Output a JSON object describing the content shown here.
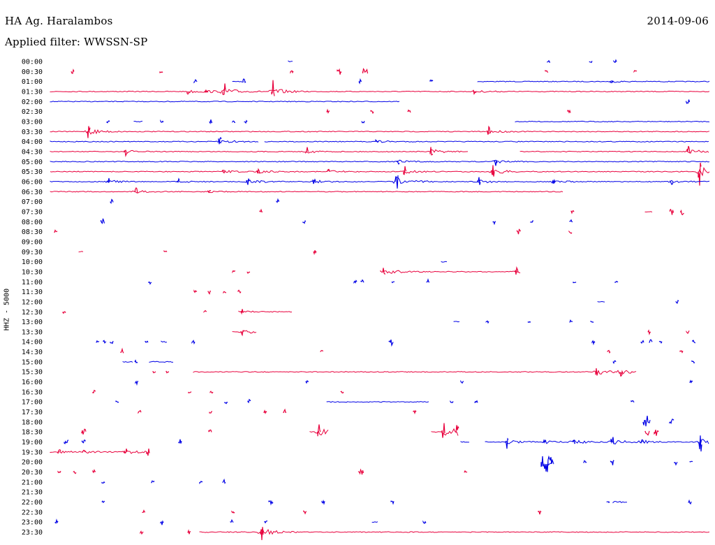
{
  "header": {
    "station": "HA Ag. Haralambos",
    "date": "2014-09-06",
    "filter": "Applied filter: WWSSN-SP"
  },
  "chart_data": {
    "type": "line",
    "title": "HA Ag. Haralambos",
    "ylabel": "HHZ - 5000",
    "colors": {
      "odd_rows": "#e8003c",
      "even_rows": "#0000e6"
    },
    "row_labels": [
      "00:00",
      "00:30",
      "01:00",
      "01:30",
      "02:00",
      "02:30",
      "03:00",
      "03:30",
      "04:00",
      "04:30",
      "05:00",
      "05:30",
      "06:00",
      "06:30",
      "07:00",
      "07:30",
      "08:00",
      "08:30",
      "09:00",
      "09:30",
      "10:00",
      "10:30",
      "11:00",
      "11:30",
      "12:00",
      "12:30",
      "13:00",
      "13:30",
      "14:00",
      "14:30",
      "15:00",
      "15:30",
      "16:00",
      "16:30",
      "17:00",
      "17:30",
      "18:00",
      "18:30",
      "19:00",
      "19:30",
      "20:00",
      "20:30",
      "21:00",
      "21:30",
      "22:00",
      "22:30",
      "23:00",
      "23:30"
    ],
    "series": [
      {
        "label": "00:00",
        "segments": [
          [
            413,
            420
          ]
        ],
        "bursts": [
          [
            786,
            0.3
          ],
          [
            846,
            0.3
          ],
          [
            881,
            0.3
          ]
        ]
      },
      {
        "label": "00:30",
        "segments": [],
        "bursts": [
          [
            104,
            0.4
          ],
          [
            231,
            0.4
          ],
          [
            418,
            0.3
          ],
          [
            486,
            0.6
          ],
          [
            523,
            0.7
          ],
          [
            783,
            0.3
          ],
          [
            910,
            0.3
          ]
        ]
      },
      {
        "label": "01:00",
        "segments": [
          [
            333,
            350
          ],
          [
            684,
            1016
          ]
        ],
        "bursts": [
          [
            280,
            0.3
          ],
          [
            350,
            0.6
          ],
          [
            516,
            0.3
          ],
          [
            618,
            0.3
          ],
          [
            876,
            0.3
          ]
        ]
      },
      {
        "label": "01:30",
        "segments": [
          [
            72,
            1016
          ]
        ],
        "bursts": [
          [
            270,
            0.6
          ],
          [
            296,
            0.4
          ],
          [
            321,
            1.6
          ],
          [
            391,
            1.6
          ],
          [
            680,
            0.5
          ]
        ]
      },
      {
        "label": "02:00",
        "segments": [
          [
            72,
            572
          ]
        ],
        "bursts": [
          [
            985,
            0.5
          ]
        ]
      },
      {
        "label": "02:30",
        "segments": [],
        "bursts": [
          [
            470,
            0.3
          ],
          [
            533,
            0.3
          ],
          [
            586,
            0.3
          ],
          [
            815,
            0.4
          ]
        ]
      },
      {
        "label": "03:00",
        "segments": [
          [
            192,
            205
          ],
          [
            738,
            1016
          ]
        ],
        "bursts": [
          [
            155,
            0.3
          ],
          [
            232,
            0.3
          ],
          [
            302,
            0.3
          ],
          [
            335,
            0.3
          ],
          [
            352,
            0.3
          ],
          [
            520,
            0.3
          ]
        ]
      },
      {
        "label": "03:30",
        "segments": [
          [
            72,
            1016
          ]
        ],
        "bursts": [
          [
            127,
            1.4
          ],
          [
            700,
            0.8
          ]
        ]
      },
      {
        "label": "04:00",
        "segments": [
          [
            72,
            370
          ],
          [
            379,
            1016
          ]
        ],
        "bursts": [
          [
            315,
            1.0
          ],
          [
            540,
            0.5
          ]
        ]
      },
      {
        "label": "04:30",
        "segments": [
          [
            72,
            670
          ],
          [
            745,
            1016
          ]
        ],
        "bursts": [
          [
            180,
            0.6
          ],
          [
            440,
            0.6
          ],
          [
            618,
            0.9
          ],
          [
            986,
            1.2
          ]
        ]
      },
      {
        "label": "05:00",
        "segments": [
          [
            72,
            1016
          ]
        ],
        "bursts": [
          [
            570,
            0.6
          ],
          [
            710,
            0.7
          ]
        ]
      },
      {
        "label": "05:30",
        "segments": [
          [
            72,
            1016
          ]
        ],
        "bursts": [
          [
            320,
            0.5
          ],
          [
            370,
            0.6
          ],
          [
            470,
            0.6
          ],
          [
            580,
            0.8
          ],
          [
            706,
            1.3
          ],
          [
            1002,
            2.4
          ]
        ]
      },
      {
        "label": "06:00",
        "segments": [
          [
            72,
            1016
          ]
        ],
        "bursts": [
          [
            155,
            0.7
          ],
          [
            255,
            0.6
          ],
          [
            355,
            0.9
          ],
          [
            450,
            0.6
          ],
          [
            568,
            2.5
          ],
          [
            686,
            0.7
          ],
          [
            793,
            0.6
          ],
          [
            962,
            0.5
          ]
        ]
      },
      {
        "label": "06:30",
        "segments": [
          [
            72,
            806
          ]
        ],
        "bursts": [
          [
            195,
            0.6
          ],
          [
            300,
            0.3
          ]
        ]
      },
      {
        "label": "07:00",
        "segments": [],
        "bursts": [
          [
            160,
            0.3
          ],
          [
            398,
            0.3
          ]
        ]
      },
      {
        "label": "07:30",
        "segments": [
          [
            924,
            934
          ]
        ],
        "bursts": [
          [
            374,
            0.3
          ],
          [
            820,
            0.3
          ],
          [
            962,
            0.5
          ],
          [
            977,
            0.5
          ]
        ]
      },
      {
        "label": "08:00",
        "segments": [],
        "bursts": [
          [
            147,
            0.5
          ],
          [
            436,
            0.3
          ],
          [
            708,
            0.3
          ],
          [
            762,
            0.3
          ],
          [
            818,
            0.3
          ]
        ]
      },
      {
        "label": "08:30",
        "segments": [],
        "bursts": [
          [
            80,
            0.3
          ],
          [
            743,
            0.5
          ],
          [
            817,
            0.4
          ]
        ]
      },
      {
        "label": "09:00",
        "segments": [],
        "bursts": []
      },
      {
        "label": "09:30",
        "segments": [
          [
            113,
            120
          ]
        ],
        "bursts": [
          [
            237,
            0.3
          ],
          [
            451,
            0.4
          ]
        ]
      },
      {
        "label": "10:00",
        "segments": [
          [
            632,
            640
          ]
        ],
        "bursts": []
      },
      {
        "label": "10:30",
        "segments": [
          [
            545,
            746
          ]
        ],
        "bursts": [
          [
            335,
            0.3
          ],
          [
            356,
            0.3
          ],
          [
            550,
            1.2
          ],
          [
            740,
            0.6
          ]
        ]
      },
      {
        "label": "11:00",
        "segments": [],
        "bursts": [
          [
            215,
            0.3
          ],
          [
            509,
            0.3
          ],
          [
            519,
            0.3
          ],
          [
            563,
            0.3
          ],
          [
            613,
            0.3
          ],
          [
            823,
            0.3
          ],
          [
            883,
            0.3
          ]
        ]
      },
      {
        "label": "11:30",
        "segments": [],
        "bursts": [
          [
            280,
            0.3
          ],
          [
            300,
            0.3
          ],
          [
            322,
            0.3
          ],
          [
            343,
            0.3
          ]
        ]
      },
      {
        "label": "12:00",
        "segments": [
          [
            856,
            866
          ]
        ],
        "bursts": [
          [
            970,
            0.3
          ]
        ]
      },
      {
        "label": "12:30",
        "segments": [
          [
            342,
            418
          ]
        ],
        "bursts": [
          [
            92,
            0.3
          ],
          [
            294,
            0.3
          ],
          [
            347,
            0.4
          ]
        ]
      },
      {
        "label": "13:00",
        "segments": [
          [
            650,
            658
          ]
        ],
        "bursts": [
          [
            698,
            0.3
          ],
          [
            758,
            0.3
          ],
          [
            818,
            0.3
          ],
          [
            848,
            0.3
          ]
        ]
      },
      {
        "label": "13:30",
        "segments": [
          [
            333,
            368
          ]
        ],
        "bursts": [
          [
            347,
            0.9
          ],
          [
            930,
            0.3
          ],
          [
            985,
            0.4
          ]
        ]
      },
      {
        "label": "14:00",
        "segments": [
          [
            231,
            240
          ]
        ],
        "bursts": [
          [
            140,
            0.3
          ],
          [
            150,
            0.3
          ],
          [
            160,
            0.3
          ],
          [
            210,
            0.3
          ],
          [
            277,
            0.3
          ],
          [
            560,
            0.6
          ],
          [
            850,
            0.3
          ],
          [
            920,
            0.3
          ],
          [
            932,
            0.3
          ],
          [
            946,
            0.3
          ],
          [
            994,
            0.4
          ]
        ]
      },
      {
        "label": "14:30",
        "segments": [],
        "bursts": [
          [
            175,
            0.4
          ],
          [
            461,
            0.3
          ],
          [
            872,
            0.4
          ],
          [
            976,
            0.3
          ]
        ]
      },
      {
        "label": "15:00",
        "segments": [
          [
            176,
            190
          ],
          [
            214,
            248
          ]
        ],
        "bursts": [
          [
            195,
            0.3
          ],
          [
            880,
            0.3
          ],
          [
            993,
            0.3
          ]
        ]
      },
      {
        "label": "15:30",
        "segments": [
          [
            277,
            912
          ]
        ],
        "bursts": [
          [
            221,
            0.3
          ],
          [
            240,
            0.3
          ],
          [
            855,
            1.3
          ],
          [
            890,
            0.9
          ]
        ]
      },
      {
        "label": "16:00",
        "segments": [],
        "bursts": [
          [
            196,
            0.3
          ],
          [
            440,
            0.3
          ],
          [
            662,
            0.3
          ],
          [
            990,
            0.3
          ]
        ]
      },
      {
        "label": "16:30",
        "segments": [],
        "bursts": [
          [
            135,
            0.3
          ],
          [
            272,
            0.3
          ],
          [
            303,
            0.3
          ],
          [
            490,
            0.3
          ]
        ]
      },
      {
        "label": "17:00",
        "segments": [
          [
            468,
            614
          ]
        ],
        "bursts": [
          [
            168,
            0.3
          ],
          [
            324,
            0.3
          ],
          [
            357,
            0.4
          ],
          [
            647,
            0.3
          ],
          [
            682,
            0.3
          ],
          [
            906,
            0.3
          ]
        ]
      },
      {
        "label": "17:30",
        "segments": [],
        "bursts": [
          [
            200,
            0.3
          ],
          [
            302,
            0.3
          ],
          [
            380,
            0.3
          ],
          [
            408,
            0.3
          ],
          [
            594,
            0.3
          ]
        ]
      },
      {
        "label": "18:00",
        "segments": [],
        "bursts": [
          [
            926,
            1.0
          ],
          [
            962,
            0.6
          ]
        ]
      },
      {
        "label": "18:30",
        "segments": [
          [
            444,
            470
          ],
          [
            618,
            656
          ]
        ],
        "bursts": [
          [
            120,
            0.6
          ],
          [
            301,
            0.4
          ],
          [
            457,
            1.6
          ],
          [
            635,
            1.8
          ],
          [
            655,
            1.6
          ],
          [
            927,
            0.6
          ],
          [
            940,
            0.6
          ]
        ]
      },
      {
        "label": "19:00",
        "segments": [
          [
            660,
            672
          ],
          [
            695,
            1016
          ]
        ],
        "bursts": [
          [
            95,
            0.6
          ],
          [
            120,
            0.5
          ],
          [
            258,
            0.4
          ],
          [
            726,
            1.0
          ],
          [
            780,
            0.6
          ],
          [
            822,
            0.8
          ],
          [
            877,
            1.2
          ],
          [
            920,
            0.7
          ],
          [
            1003,
            2.3
          ]
        ]
      },
      {
        "label": "19:30",
        "segments": [
          [
            72,
            212
          ]
        ],
        "bursts": [
          [
            85,
            0.5
          ],
          [
            120,
            0.6
          ],
          [
            180,
            0.9
          ],
          [
            212,
            0.9
          ]
        ]
      },
      {
        "label": "20:00",
        "segments": [
          [
            785,
            793
          ]
        ],
        "bursts": [
          [
            783,
            1.6
          ],
          [
            838,
            0.3
          ],
          [
            877,
            0.5
          ],
          [
            968,
            0.4
          ],
          [
            990,
            0.3
          ]
        ]
      },
      {
        "label": "20:30",
        "segments": [],
        "bursts": [
          [
            85,
            0.3
          ],
          [
            107,
            0.3
          ],
          [
            135,
            0.3
          ],
          [
            517,
            0.7
          ],
          [
            667,
            0.3
          ]
        ]
      },
      {
        "label": "21:00",
        "segments": [],
        "bursts": [
          [
            148,
            0.4
          ],
          [
            219,
            0.3
          ],
          [
            288,
            0.3
          ],
          [
            321,
            0.3
          ]
        ]
      },
      {
        "label": "21:30",
        "segments": [],
        "bursts": []
      },
      {
        "label": "22:00",
        "segments": [
          [
            878,
            898
          ]
        ],
        "bursts": [
          [
            148,
            0.3
          ],
          [
            388,
            0.6
          ],
          [
            463,
            0.3
          ],
          [
            562,
            0.3
          ],
          [
            871,
            0.3
          ],
          [
            988,
            0.4
          ]
        ]
      },
      {
        "label": "22:30",
        "segments": [],
        "bursts": [
          [
            206,
            0.3
          ],
          [
            334,
            0.3
          ],
          [
            437,
            0.3
          ],
          [
            773,
            0.3
          ]
        ]
      },
      {
        "label": "23:00",
        "segments": [
          [
            533,
            541
          ]
        ],
        "bursts": [
          [
            81,
            0.3
          ],
          [
            232,
            0.4
          ],
          [
            332,
            0.3
          ],
          [
            381,
            0.4
          ],
          [
            608,
            0.3
          ]
        ]
      },
      {
        "label": "23:30",
        "segments": [
          [
            286,
            1016
          ]
        ],
        "bursts": [
          [
            203,
            0.3
          ],
          [
            271,
            0.3
          ],
          [
            375,
            1.8
          ]
        ]
      }
    ]
  }
}
